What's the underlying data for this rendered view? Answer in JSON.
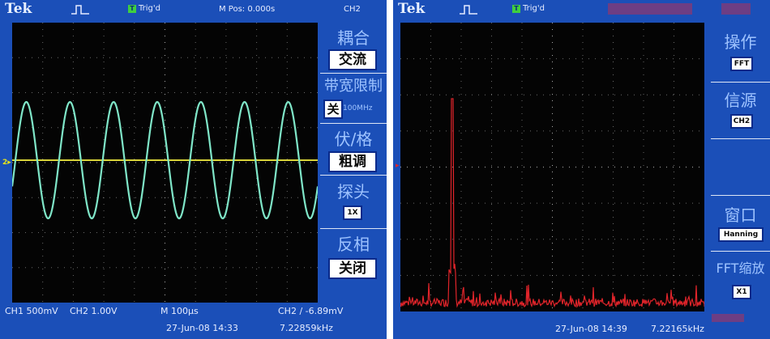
{
  "left": {
    "brand": "Tek",
    "trig_status": "Trig'd",
    "trig_icon_label": "T",
    "m_pos": "M Pos: 0.000s",
    "channel": "CH2",
    "menu": {
      "coupling_title": "耦合",
      "coupling_value": "交流",
      "bw_limit_title": "带宽限制",
      "bw_limit_value": "关",
      "bw_limit_freq": "100MHz",
      "volts_div_title": "伏/格",
      "volts_div_value": "粗调",
      "probe_title": "探头",
      "probe_value": "1X",
      "invert_title": "反相",
      "invert_value": "关闭"
    },
    "status": {
      "ch1": "CH1  500mV",
      "ch2": "CH2  1.00V",
      "time_base": "M 100μs",
      "trigger": "CH2 ∕ -6.89mV",
      "date": "27-Jun-08 14:33",
      "frequency": "7.22859kHz"
    },
    "waveform": {
      "type": "sine",
      "cycles": 7,
      "color": "#7fe6c8"
    }
  },
  "right": {
    "brand": "Tek",
    "trig_status": "Trig'd",
    "trig_icon_label": "T",
    "menu": {
      "operation_title": "操作",
      "operation_value": "FFT",
      "source_title": "信源",
      "source_value": "CH2",
      "window_title": "窗口",
      "window_value": "Hanning",
      "zoom_title": "FFT缩放",
      "zoom_value": "X1"
    },
    "status": {
      "date": "27-Jun-08 14:39",
      "frequency": "7.22165kHz"
    },
    "spectrum": {
      "type": "fft",
      "peak_position": 0.17,
      "peak_level": 0.72,
      "color": "#e0242a"
    }
  },
  "colors": {
    "panel": "#1b4fb8",
    "screen": "#040404",
    "menu_text": "#9ec3ff",
    "grid": "#bdbdbd"
  }
}
